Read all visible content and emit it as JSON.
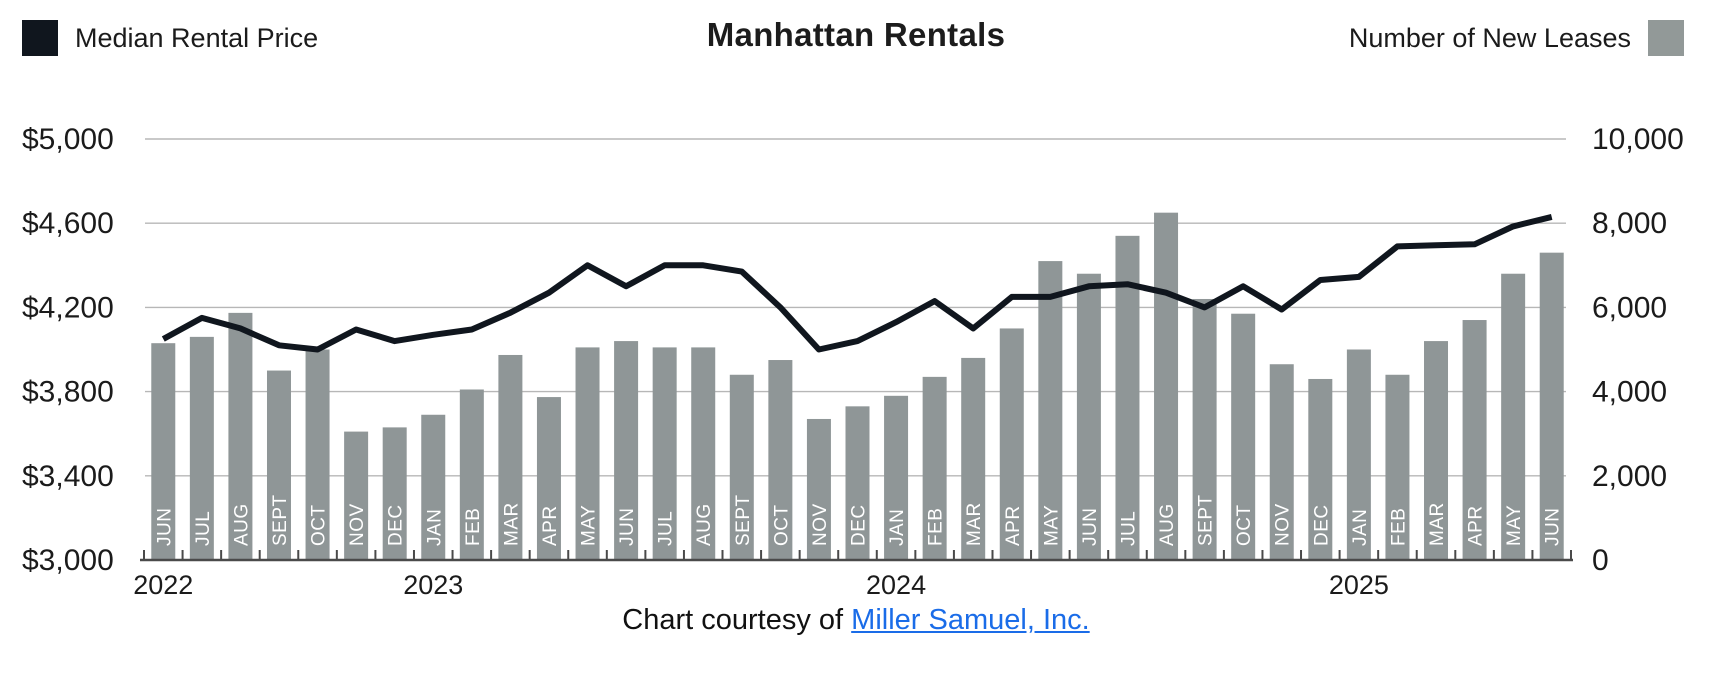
{
  "header": {
    "title": "Manhattan Rentals",
    "legend_left_label": "Median Rental Price",
    "legend_right_label": "Number of New Leases"
  },
  "colors": {
    "line": "#10161e",
    "bar": "#8f9697",
    "legend_bar_swatch": "#929998",
    "grid": "#b7b7b7",
    "axis": "#4a4a4a",
    "text": "#1b1b1b",
    "month_label": "#ffffff",
    "link": "#1a6ce8"
  },
  "footer": {
    "prefix": "Chart courtesy of ",
    "link_text": "Miller Samuel, Inc."
  },
  "chart_data": {
    "type": "combo",
    "title": "Manhattan Rentals",
    "grid": true,
    "legend_position": "top",
    "months": [
      "JUN",
      "JUL",
      "AUG",
      "SEPT",
      "OCT",
      "NOV",
      "DEC",
      "JAN",
      "FEB",
      "MAR",
      "APR",
      "MAY",
      "JUN",
      "JUL",
      "AUG",
      "SEPT",
      "OCT",
      "NOV",
      "DEC",
      "JAN",
      "FEB",
      "MAR",
      "APR",
      "MAY",
      "JUN",
      "JUL",
      "AUG",
      "SEPT",
      "OCT",
      "NOV",
      "DEC",
      "JAN",
      "FEB",
      "MAR",
      "APR",
      "MAY",
      "JUN"
    ],
    "year_labels": [
      {
        "label": "2022",
        "index": 0
      },
      {
        "label": "2023",
        "index": 7
      },
      {
        "label": "2024",
        "index": 19
      },
      {
        "label": "2025",
        "index": 31
      }
    ],
    "series": [
      {
        "name": "Median Rental Price",
        "type": "line",
        "axis": "left",
        "values": [
          4050,
          4150,
          4100,
          4020,
          4000,
          4095,
          4040,
          4070,
          4095,
          4175,
          4270,
          4400,
          4300,
          4400,
          4400,
          4370,
          4200,
          4000,
          4040,
          4130,
          4230,
          4100,
          4250,
          4250,
          4300,
          4310,
          4270,
          4200,
          4300,
          4190,
          4330,
          4345,
          4490,
          4495,
          4500,
          4585,
          4630
        ]
      },
      {
        "name": "Number of New Leases",
        "type": "bar",
        "axis": "right",
        "values": [
          5150,
          5300,
          5870,
          4500,
          5000,
          3050,
          3150,
          3450,
          4050,
          4870,
          3870,
          5050,
          5200,
          5050,
          5050,
          4400,
          4750,
          3350,
          3650,
          3900,
          4350,
          4800,
          5500,
          7100,
          6800,
          7700,
          8250,
          6200,
          5850,
          4650,
          4300,
          5000,
          4400,
          5200,
          5700,
          6800,
          7300
        ]
      }
    ],
    "left_axis": {
      "range": [
        3000,
        5000
      ],
      "ticks": [
        5000,
        4600,
        4200,
        3800,
        3400,
        3000
      ],
      "labels": [
        "$5,000",
        "$4,600",
        "$4,200",
        "$3,800",
        "$3,400",
        "$3,000"
      ]
    },
    "right_axis": {
      "range": [
        0,
        10000
      ],
      "ticks": [
        10000,
        8000,
        6000,
        4000,
        2000,
        0
      ],
      "labels": [
        "10,000",
        "8,000",
        "6,000",
        "4,000",
        "2,000",
        "0"
      ]
    }
  }
}
